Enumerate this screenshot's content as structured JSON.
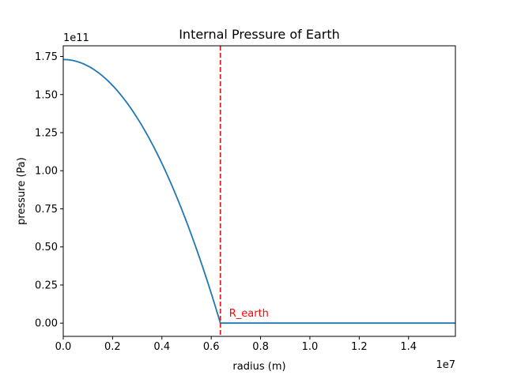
{
  "chart_data": {
    "type": "line",
    "title": "Internal Pressure of Earth",
    "xlabel": "radius (m)",
    "ylabel": "pressure (Pa)",
    "x_offset_label": "1e7",
    "y_offset_label": "1e11",
    "xlim": [
      0,
      15900000
    ],
    "ylim": [
      -8700000000,
      182000000000
    ],
    "x_ticks": [
      0,
      2000000,
      4000000,
      6000000,
      8000000,
      10000000,
      12000000,
      14000000
    ],
    "x_tick_labels": [
      "0.0",
      "0.2",
      "0.4",
      "0.6",
      "0.8",
      "1.0",
      "1.2",
      "1.4"
    ],
    "y_ticks": [
      0,
      25000000000,
      50000000000,
      75000000000,
      100000000000,
      125000000000,
      150000000000,
      175000000000
    ],
    "y_tick_labels": [
      "0.00",
      "0.25",
      "0.50",
      "0.75",
      "1.00",
      "1.25",
      "1.50",
      "1.75"
    ],
    "grid": false,
    "series": [
      {
        "color": "#1f77b4",
        "x": [
          0,
          1000000,
          2000000,
          3000000,
          4000000,
          5000000,
          6000000,
          6371000,
          8000000,
          10000000,
          12000000,
          14000000,
          15900000
        ],
        "y": [
          173000000000,
          168700000000,
          155900000000,
          134700000000,
          105000000000,
          66700000000,
          19900000000,
          0,
          0,
          0,
          0,
          0,
          0
        ]
      }
    ],
    "annotations": [
      {
        "type": "vline",
        "x": 6371000,
        "style": "dashed",
        "color": "#d62728",
        "label": "R_earth",
        "label_color": "#ff0000"
      }
    ]
  }
}
